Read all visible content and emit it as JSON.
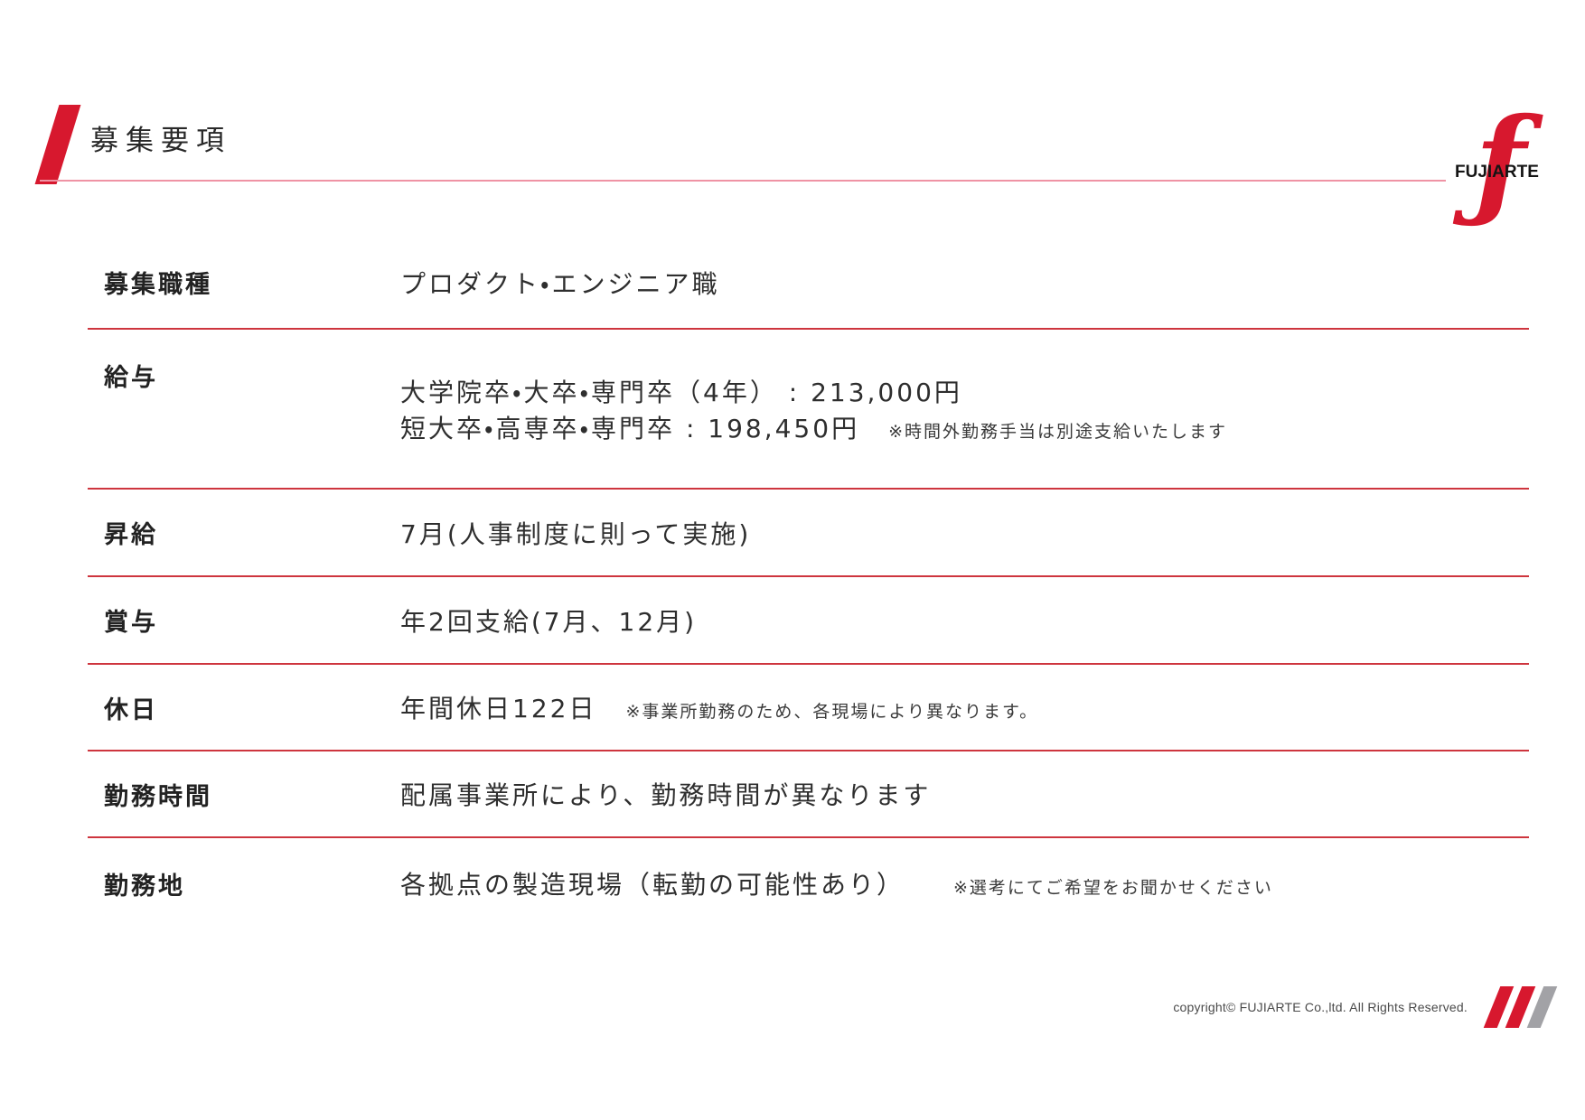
{
  "header": {
    "title": "募集要項",
    "logo_glyph": "ƒ",
    "logo_text": "FUJIARTE"
  },
  "table": {
    "rows": [
      {
        "label": "募集職種",
        "lines": [
          {
            "text": "プロダクト・エンジニア職",
            "note": ""
          }
        ]
      },
      {
        "label": "給与",
        "lines": [
          {
            "text": "大学院卒・大卒・専門卒（4年） : 213,000円",
            "note": ""
          },
          {
            "text": "短大卒・高専卒・専門卒 : 198,450円",
            "note": "※時間外勤務手当は別途支給いたします"
          }
        ]
      },
      {
        "label": "昇給",
        "lines": [
          {
            "text": "7月(人事制度に則って実施)",
            "note": ""
          }
        ]
      },
      {
        "label": "賞与",
        "lines": [
          {
            "text": "年2回支給(7月、12月)",
            "note": ""
          }
        ]
      },
      {
        "label": "休日",
        "lines": [
          {
            "text": "年間休日122日",
            "note": "※事業所勤務のため、各現場により異なります。"
          }
        ]
      },
      {
        "label": "勤務時間",
        "lines": [
          {
            "text": "配属事業所により、勤務時間が異なります",
            "note": ""
          }
        ]
      },
      {
        "label": "勤務地",
        "lines": [
          {
            "text": "各拠点の製造現場（転勤の可能性あり）",
            "note": "※選考にてご希望をお聞かせください"
          }
        ]
      }
    ]
  },
  "footer": {
    "copyright": "copyright© FUJIARTE Co.,ltd. All Rights Reserved."
  },
  "colors": {
    "accent_red": "#d7182e",
    "divider_red": "#ce353e",
    "title_underline_pink": "#ef93a4",
    "slash_gray": "#a2a2a6"
  }
}
